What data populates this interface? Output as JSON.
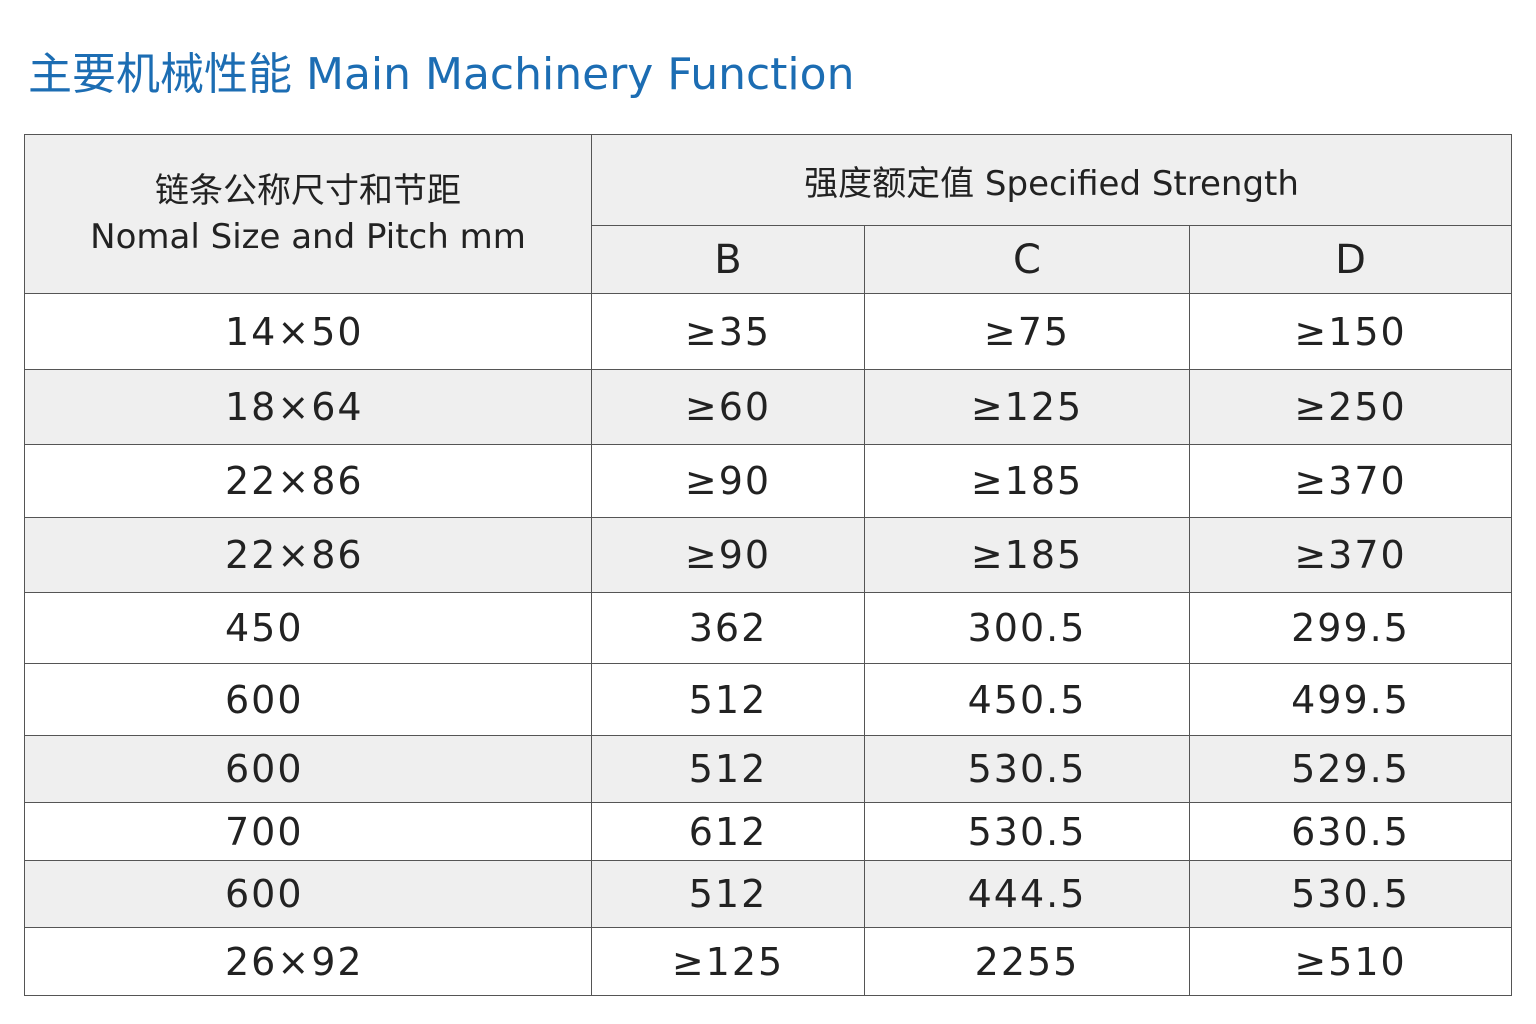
{
  "header": {
    "title": "主要机械性能 Main Machinery Function"
  },
  "table": {
    "head": {
      "left_line1": "链条公称尺寸和节距",
      "left_line2": "Nomal  Size  and  Pitch  mm",
      "group": "强度额定值 Specified Strength",
      "columns": [
        "B",
        "C",
        "D"
      ]
    },
    "rows": [
      [
        "14×50",
        "≥35",
        "≥75",
        "≥150"
      ],
      [
        "18×64",
        "≥60",
        "≥125",
        "≥250"
      ],
      [
        "22×86",
        "≥90",
        "≥185",
        "≥370"
      ],
      [
        "22×86",
        "≥90",
        "≥185",
        "≥370"
      ],
      [
        "450",
        "362",
        "300.5",
        "299.5"
      ],
      [
        "600",
        "512",
        "450.5",
        "499.5"
      ],
      [
        "600",
        "512",
        "530.5",
        "529.5"
      ],
      [
        "700",
        "612",
        "530.5",
        "630.5"
      ],
      [
        "600",
        "512",
        "444.5",
        "530.5"
      ],
      [
        "26×92",
        "≥125",
        "2255",
        "≥510"
      ]
    ]
  }
}
